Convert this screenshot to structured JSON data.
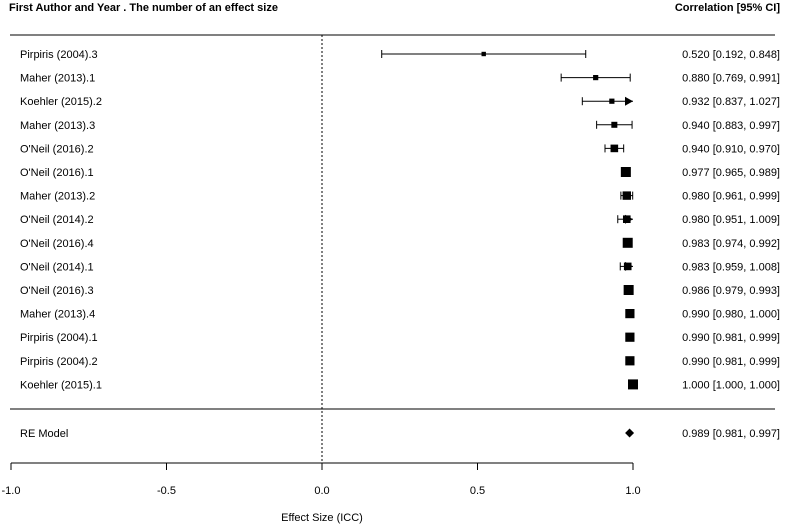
{
  "chart_data": {
    "type": "forest",
    "header_left": "First Author and Year . The number of an effect size",
    "header_right": "Correlation [95% CI]",
    "xlabel": "Effect Size (ICC)",
    "xlim": [
      -1.0,
      1.0
    ],
    "xticks": [
      -1.0,
      -0.5,
      0.0,
      0.5,
      1.0
    ],
    "xtick_labels": [
      "-1.0",
      "-0.5",
      "0.0",
      "0.5",
      "1.0"
    ],
    "reference_line": 0.0,
    "studies": [
      {
        "label": "Pirpiris (2004).3",
        "est": 0.52,
        "lo": 0.192,
        "hi": 0.848,
        "ci_text": "0.520 [0.192, 0.848]",
        "weight": 0.6
      },
      {
        "label": "Maher (2013).1",
        "est": 0.88,
        "lo": 0.769,
        "hi": 0.991,
        "ci_text": "0.880 [0.769, 0.991]",
        "weight": 0.8
      },
      {
        "label": "Koehler (2015).2",
        "est": 0.932,
        "lo": 0.837,
        "hi": 1.027,
        "ci_text": "0.932 [0.837, 1.027]",
        "weight": 0.8
      },
      {
        "label": "Maher (2013).3",
        "est": 0.94,
        "lo": 0.883,
        "hi": 0.997,
        "ci_text": "0.940 [0.883, 0.997]",
        "weight": 1.0
      },
      {
        "label": "O'Neil (2016).2",
        "est": 0.94,
        "lo": 0.91,
        "hi": 0.97,
        "ci_text": "0.940 [0.910, 0.970]",
        "weight": 1.4
      },
      {
        "label": "O'Neil (2016).1",
        "est": 0.977,
        "lo": 0.965,
        "hi": 0.989,
        "ci_text": "0.977 [0.965, 0.989]",
        "weight": 2.0
      },
      {
        "label": "Maher (2013).2",
        "est": 0.98,
        "lo": 0.961,
        "hi": 0.999,
        "ci_text": "0.980 [0.961, 0.999]",
        "weight": 1.6
      },
      {
        "label": "O'Neil (2014).2",
        "est": 0.98,
        "lo": 0.951,
        "hi": 1.009,
        "ci_text": "0.980 [0.951, 1.009]",
        "weight": 1.4
      },
      {
        "label": "O'Neil (2016).4",
        "est": 0.983,
        "lo": 0.974,
        "hi": 0.992,
        "ci_text": "0.983 [0.974, 0.992]",
        "weight": 2.0
      },
      {
        "label": "O'Neil (2014).1",
        "est": 0.983,
        "lo": 0.959,
        "hi": 1.008,
        "ci_text": "0.983 [0.959, 1.008]",
        "weight": 1.4
      },
      {
        "label": "O'Neil (2016).3",
        "est": 0.986,
        "lo": 0.979,
        "hi": 0.993,
        "ci_text": "0.986 [0.979, 0.993]",
        "weight": 2.0
      },
      {
        "label": "Maher (2013).4",
        "est": 0.99,
        "lo": 0.98,
        "hi": 1.0,
        "ci_text": "0.990 [0.980, 1.000]",
        "weight": 1.8
      },
      {
        "label": "Pirpiris (2004).1",
        "est": 0.99,
        "lo": 0.981,
        "hi": 0.999,
        "ci_text": "0.990 [0.981, 0.999]",
        "weight": 1.8
      },
      {
        "label": "Pirpiris (2004).2",
        "est": 0.99,
        "lo": 0.981,
        "hi": 0.999,
        "ci_text": "0.990 [0.981, 0.999]",
        "weight": 1.8
      },
      {
        "label": "Koehler (2015).1",
        "est": 1.0,
        "lo": 1.0,
        "hi": 1.0,
        "ci_text": "1.000 [1.000, 1.000]",
        "weight": 2.0
      }
    ],
    "summary": {
      "label": "RE Model",
      "est": 0.989,
      "lo": 0.981,
      "hi": 0.997,
      "ci_text": "0.989 [0.981, 0.997]"
    }
  }
}
